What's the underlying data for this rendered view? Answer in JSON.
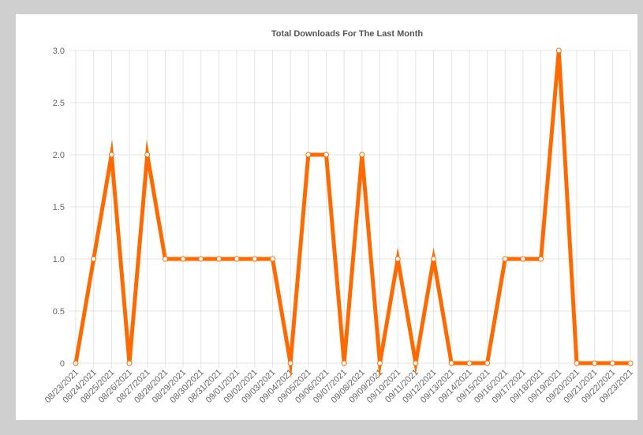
{
  "chart_data": {
    "type": "line",
    "title": "Total Downloads For The Last Month",
    "categories": [
      "08/23/2021",
      "08/24/2021",
      "08/25/2021",
      "08/26/2021",
      "08/27/2021",
      "08/28/2021",
      "08/29/2021",
      "08/30/2021",
      "08/31/2021",
      "09/01/2021",
      "09/02/2021",
      "09/03/2021",
      "09/04/2021",
      "09/05/2021",
      "09/06/2021",
      "09/07/2021",
      "09/08/2021",
      "09/09/2021",
      "09/10/2021",
      "09/11/2021",
      "09/12/2021",
      "09/13/2021",
      "09/14/2021",
      "09/15/2021",
      "09/16/2021",
      "09/17/2021",
      "09/18/2021",
      "09/19/2021",
      "09/20/2021",
      "09/21/2021",
      "09/22/2021",
      "09/23/2021"
    ],
    "values": [
      0,
      1,
      2,
      0,
      2,
      1,
      1,
      1,
      1,
      1,
      1,
      1,
      0,
      2,
      2,
      0,
      2,
      0,
      1,
      0,
      1,
      0,
      0,
      0,
      1,
      1,
      1,
      3,
      0,
      0,
      0,
      0
    ],
    "color": "#ff6a00",
    "ylim": [
      0,
      3
    ],
    "yticks": [
      0,
      0.5,
      {
        "value": 1,
        "label": "1.0"
      },
      1.5,
      {
        "value": 2,
        "label": "2.0"
      },
      2.5,
      {
        "value": 3,
        "label": "3.0"
      }
    ],
    "grid": true
  }
}
